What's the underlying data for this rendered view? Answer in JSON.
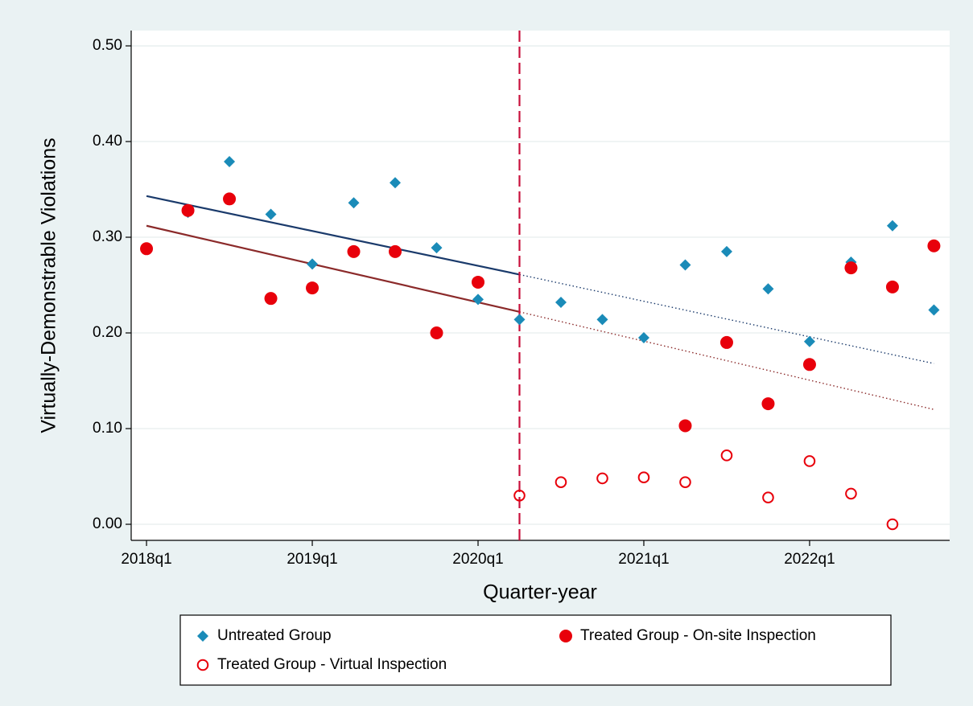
{
  "chart_data": {
    "type": "scatter",
    "x_label": "Quarter-year",
    "y_label": "Virtually-Demonstrable Violations",
    "x": [
      232,
      233,
      234,
      235,
      236,
      237,
      238,
      239,
      240,
      241,
      242,
      243,
      244,
      245,
      246,
      247,
      248,
      249,
      250,
      251
    ],
    "series": [
      {
        "name": "Untreated Group",
        "color": "#1a8bb8",
        "marker": "diamond",
        "values": [
          0.288,
          0.326,
          0.379,
          0.324,
          0.272,
          0.336,
          0.357,
          0.289,
          0.235,
          0.214,
          0.232,
          0.214,
          0.195,
          0.271,
          0.285,
          0.246,
          0.191,
          0.274,
          0.312,
          0.224
        ]
      },
      {
        "name": "Treated Group - On-site Inspection",
        "color": "#e8000b",
        "marker": "filled-circle",
        "values": [
          0.288,
          0.328,
          0.34,
          0.236,
          0.247,
          0.285,
          0.285,
          0.2,
          0.253,
          null,
          null,
          null,
          null,
          0.103,
          0.19,
          0.126,
          0.167,
          0.268,
          0.248,
          0.291
        ]
      },
      {
        "name": "Treated Group - Virtual Inspection",
        "color": "#e8000b",
        "marker": "hollow-circle",
        "values": [
          null,
          null,
          null,
          null,
          null,
          null,
          null,
          null,
          null,
          0.03,
          0.044,
          0.048,
          0.049,
          0.044,
          0.072,
          0.028,
          0.066,
          0.032,
          0.0,
          null
        ]
      }
    ],
    "fit_lines": [
      {
        "color": "#1a3a6b",
        "style": "solid",
        "x": [
          232,
          241
        ],
        "values": [
          0.343,
          0.261
        ]
      },
      {
        "color": "#1a3a6b",
        "style": "dotted",
        "x": [
          241,
          251
        ],
        "values": [
          0.261,
          0.168
        ]
      },
      {
        "color": "#8b2a2a",
        "style": "solid",
        "x": [
          232,
          241
        ],
        "values": [
          0.312,
          0.222
        ]
      },
      {
        "color": "#8b2a2a",
        "style": "dotted",
        "x": [
          241,
          251
        ],
        "values": [
          0.222,
          0.12
        ]
      }
    ],
    "vline": {
      "x": 241,
      "color": "#c8103c",
      "style": "dashed"
    },
    "xlim": [
      231.63,
      251.38
    ],
    "ylim": [
      -0.0168,
      0.516
    ],
    "xticks": [
      {
        "value": 232,
        "label": "2018q1"
      },
      {
        "value": 236,
        "label": "2019q1"
      },
      {
        "value": 240,
        "label": "2020q1"
      },
      {
        "value": 244,
        "label": "2021q1"
      },
      {
        "value": 248,
        "label": "2022q1"
      }
    ],
    "yticks": [
      {
        "value": 0,
        "label": "0.00"
      },
      {
        "value": 0.1,
        "label": "0.10"
      },
      {
        "value": 0.2,
        "label": "0.20"
      },
      {
        "value": 0.3,
        "label": "0.30"
      },
      {
        "value": 0.4,
        "label": "0.40"
      },
      {
        "value": 0.5,
        "label": "0.50"
      }
    ],
    "grid": true,
    "legend": "bottom"
  }
}
